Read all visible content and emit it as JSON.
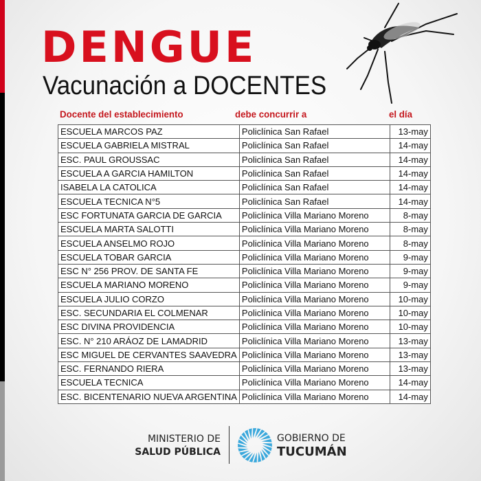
{
  "title": "DENGUE",
  "subtitle": "Vacunación a DOCENTES",
  "colors": {
    "accent": "#d8101e",
    "sun": "#3aa8dc"
  },
  "table": {
    "headers": [
      "Docente del establecimiento",
      "debe concurrir a",
      "el día"
    ],
    "rows": [
      [
        "ESCUELA MARCOS PAZ",
        "Policlínica San Rafael",
        "13-may"
      ],
      [
        "ESCUELA GABRIELA MISTRAL",
        "Policlínica San Rafael",
        "14-may"
      ],
      [
        "ESC. PAUL GROUSSAC",
        "Policlínica San Rafael",
        "14-may"
      ],
      [
        "ESCUELA A GARCIA HAMILTON",
        "Policlínica San Rafael",
        "14-may"
      ],
      [
        "ISABELA LA CATOLICA",
        "Policlínica San Rafael",
        "14-may"
      ],
      [
        "ESCUELA TECNICA N°5",
        "Policlínica San Rafael",
        "14-may"
      ],
      [
        "ESC FORTUNATA GARCIA DE GARCIA",
        "Policlínica Villa Mariano Moreno",
        "8-may"
      ],
      [
        "ESCUELA MARTA SALOTTI",
        "Policlínica Villa Mariano Moreno",
        "8-may"
      ],
      [
        "ESCUELA ANSELMO ROJO",
        "Policlínica Villa Mariano Moreno",
        "8-may"
      ],
      [
        "ESCUELA TOBAR GARCIA",
        "Policlínica Villa Mariano Moreno",
        "9-may"
      ],
      [
        "ESC N° 256 PROV. DE SANTA FE",
        "Policlínica Villa Mariano Moreno",
        "9-may"
      ],
      [
        "ESCUELA MARIANO MORENO",
        "Policlínica Villa Mariano Moreno",
        "9-may"
      ],
      [
        "ESCUELA JULIO CORZO",
        "Policlínica Villa Mariano Moreno",
        "10-may"
      ],
      [
        "ESC. SECUNDARIA EL COLMENAR",
        "Policlínica Villa Mariano Moreno",
        "10-may"
      ],
      [
        "ESC DIVINA PROVIDENCIA",
        "Policlínica Villa Mariano Moreno",
        "10-may"
      ],
      [
        "ESC. N° 210 ARÁOZ DE LAMADRID",
        "Policlínica Villa Mariano Moreno",
        "13-may"
      ],
      [
        "ESC MIGUEL DE CERVANTES SAAVEDRA",
        "Policlínica Villa Mariano Moreno",
        "13-may"
      ],
      [
        "ESC. FERNANDO RIERA",
        "Policlínica Villa Mariano Moreno",
        "13-may"
      ],
      [
        "ESCUELA TECNICA",
        "Policlínica Villa Mariano Moreno",
        "14-may"
      ],
      [
        "ESC. BICENTENARIO NUEVA ARGENTINA",
        "Policlínica Villa Mariano Moreno",
        "14-may"
      ]
    ]
  },
  "footer": {
    "ministry_line1": "MINISTERIO DE",
    "ministry_line2": "SALUD PÚBLICA",
    "gov_line1": "GOBIERNO DE",
    "gov_line2": "TUCUMÁN"
  }
}
